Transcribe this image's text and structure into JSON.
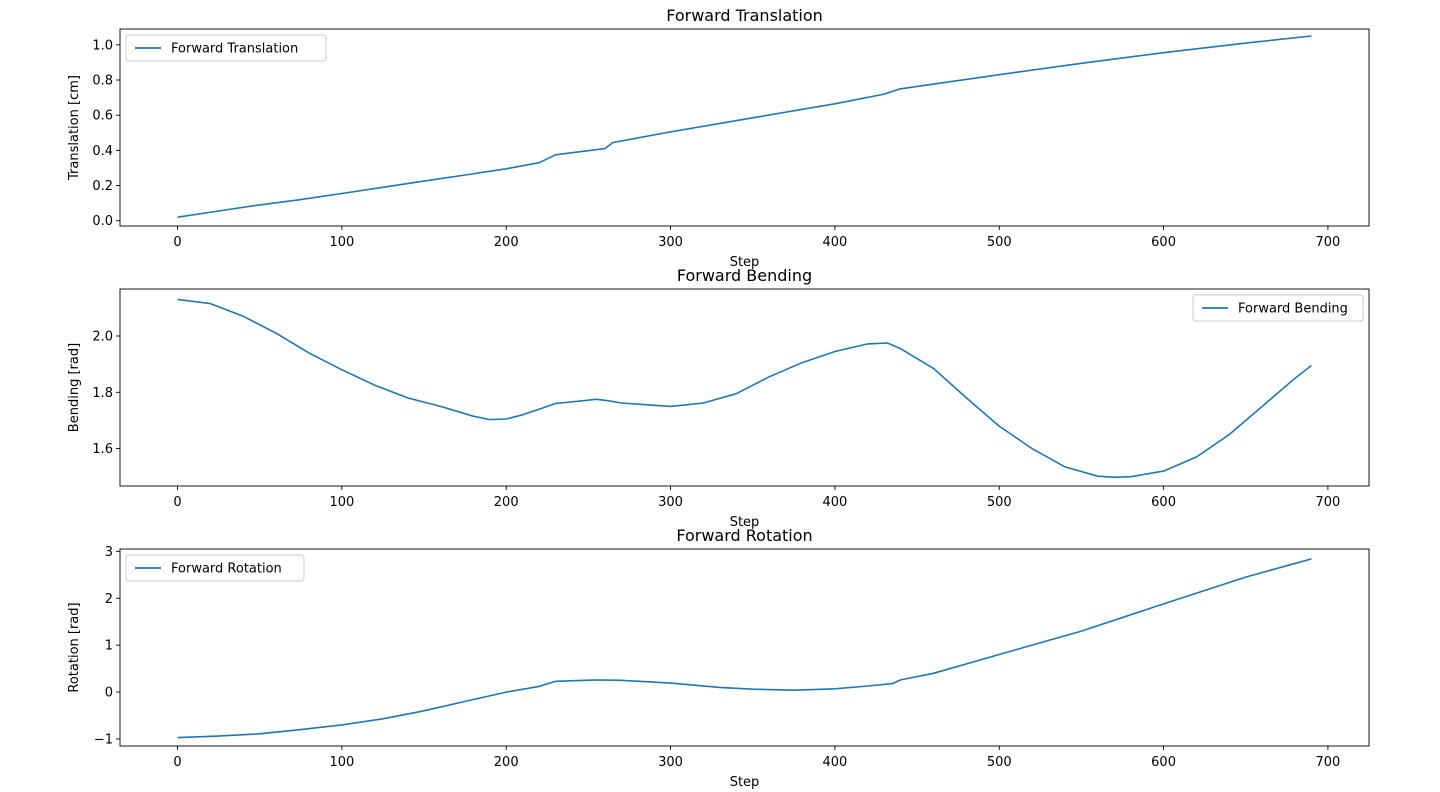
{
  "chart_data": [
    {
      "type": "line",
      "title": "Forward Translation",
      "xlabel": "Step",
      "ylabel": "Translation [cm]",
      "xlim": [
        -35,
        725
      ],
      "ylim": [
        -0.03,
        1.09
      ],
      "xticks": [
        0,
        100,
        200,
        300,
        400,
        500,
        600,
        700
      ],
      "yticks": [
        0.0,
        0.2,
        0.4,
        0.6,
        0.8,
        1.0
      ],
      "ytick_decimals": 1,
      "legend": "top-left",
      "color": "#1f77b4",
      "series": [
        {
          "name": "Forward Translation",
          "x": [
            0,
            25,
            50,
            75,
            100,
            125,
            150,
            175,
            200,
            220,
            230,
            260,
            265,
            300,
            350,
            400,
            430,
            440,
            500,
            550,
            600,
            650,
            690
          ],
          "y": [
            0.02,
            0.055,
            0.09,
            0.12,
            0.155,
            0.19,
            0.225,
            0.26,
            0.295,
            0.33,
            0.375,
            0.41,
            0.445,
            0.505,
            0.585,
            0.665,
            0.72,
            0.75,
            0.83,
            0.895,
            0.955,
            1.01,
            1.05
          ]
        }
      ]
    },
    {
      "type": "line",
      "title": "Forward Bending",
      "xlabel": "Step",
      "ylabel": "Bending [rad]",
      "xlim": [
        -35,
        725
      ],
      "ylim": [
        1.467,
        2.167
      ],
      "xticks": [
        0,
        100,
        200,
        300,
        400,
        500,
        600,
        700
      ],
      "yticks": [
        1.6,
        1.8,
        2.0
      ],
      "ytick_decimals": 1,
      "legend": "top-right",
      "color": "#1f77b4",
      "series": [
        {
          "name": "Forward Bending",
          "x": [
            0,
            20,
            40,
            60,
            80,
            100,
            120,
            140,
            160,
            180,
            190,
            200,
            210,
            220,
            230,
            255,
            262,
            270,
            300,
            320,
            340,
            360,
            380,
            400,
            420,
            432,
            440,
            460,
            480,
            500,
            520,
            540,
            560,
            570,
            580,
            600,
            620,
            640,
            660,
            680,
            690
          ],
          "y": [
            2.13,
            2.115,
            2.07,
            2.01,
            1.94,
            1.88,
            1.825,
            1.78,
            1.75,
            1.715,
            1.703,
            1.705,
            1.72,
            1.74,
            1.76,
            1.775,
            1.77,
            1.762,
            1.75,
            1.762,
            1.795,
            1.855,
            1.905,
            1.945,
            1.972,
            1.975,
            1.955,
            1.885,
            1.78,
            1.68,
            1.6,
            1.535,
            1.502,
            1.498,
            1.5,
            1.52,
            1.57,
            1.65,
            1.75,
            1.85,
            1.895
          ]
        }
      ]
    },
    {
      "type": "line",
      "title": "Forward Rotation",
      "xlabel": "Step",
      "ylabel": "Rotation [rad]",
      "xlim": [
        -35,
        725
      ],
      "ylim": [
        -1.15,
        3.05
      ],
      "xticks": [
        0,
        100,
        200,
        300,
        400,
        500,
        600,
        700
      ],
      "yticks": [
        -1,
        0,
        1,
        2,
        3
      ],
      "ytick_decimals": 0,
      "legend": "top-left",
      "color": "#1f77b4",
      "series": [
        {
          "name": "Forward Rotation",
          "x": [
            0,
            25,
            50,
            75,
            100,
            125,
            150,
            175,
            200,
            220,
            230,
            255,
            270,
            300,
            330,
            350,
            375,
            400,
            420,
            435,
            440,
            460,
            500,
            550,
            600,
            650,
            690
          ],
          "y": [
            -0.97,
            -0.94,
            -0.89,
            -0.8,
            -0.7,
            -0.57,
            -0.4,
            -0.2,
            0.0,
            0.12,
            0.23,
            0.26,
            0.25,
            0.19,
            0.1,
            0.06,
            0.04,
            0.07,
            0.13,
            0.18,
            0.26,
            0.4,
            0.8,
            1.3,
            1.88,
            2.45,
            2.84
          ]
        }
      ]
    }
  ]
}
